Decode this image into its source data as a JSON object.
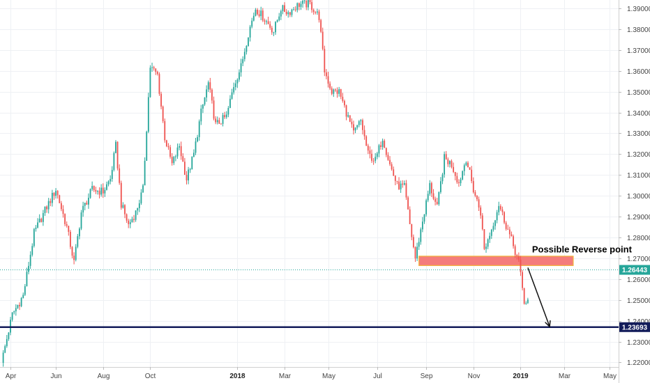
{
  "chart_data": {
    "type": "candlestick",
    "y_ticks": [
      "1.39000",
      "1.38000",
      "1.37000",
      "1.36000",
      "1.35000",
      "1.34000",
      "1.33000",
      "1.32000",
      "1.31000",
      "1.30000",
      "1.29000",
      "1.28000",
      "1.27000",
      "1.26000",
      "1.25000",
      "1.24000",
      "1.23000",
      "1.22000"
    ],
    "x_ticks": [
      {
        "label": "Apr",
        "bold": false
      },
      {
        "label": "Jun",
        "bold": false
      },
      {
        "label": "Aug",
        "bold": false
      },
      {
        "label": "Oct",
        "bold": false
      },
      {
        "label": "2018",
        "bold": true
      },
      {
        "label": "Mar",
        "bold": false
      },
      {
        "label": "May",
        "bold": false
      },
      {
        "label": "Jul",
        "bold": false
      },
      {
        "label": "Sep",
        "bold": false
      },
      {
        "label": "Nov",
        "bold": false
      },
      {
        "label": "2019",
        "bold": true
      },
      {
        "label": "Mar",
        "bold": false
      },
      {
        "label": "May",
        "bold": false
      }
    ],
    "x_tick_index": [
      5,
      30,
      56,
      82,
      130,
      156,
      180,
      207,
      234,
      260,
      286,
      310,
      335
    ],
    "ylim": [
      1.2178,
      1.394
    ],
    "bars_total": 340,
    "price_path": [
      [
        0,
        1.2198
      ],
      [
        6,
        1.243
      ],
      [
        12,
        1.252
      ],
      [
        18,
        1.282
      ],
      [
        24,
        1.293
      ],
      [
        30,
        1.303
      ],
      [
        36,
        1.285
      ],
      [
        40,
        1.268
      ],
      [
        44,
        1.292
      ],
      [
        50,
        1.303
      ],
      [
        56,
        1.302
      ],
      [
        60,
        1.308
      ],
      [
        63,
        1.324
      ],
      [
        66,
        1.296
      ],
      [
        70,
        1.286
      ],
      [
        74,
        1.292
      ],
      [
        78,
        1.303
      ],
      [
        82,
        1.362
      ],
      [
        86,
        1.358
      ],
      [
        90,
        1.328
      ],
      [
        94,
        1.315
      ],
      [
        98,
        1.324
      ],
      [
        102,
        1.308
      ],
      [
        106,
        1.32
      ],
      [
        110,
        1.34
      ],
      [
        114,
        1.354
      ],
      [
        118,
        1.334
      ],
      [
        124,
        1.338
      ],
      [
        128,
        1.353
      ],
      [
        132,
        1.362
      ],
      [
        136,
        1.378
      ],
      [
        140,
        1.39
      ],
      [
        144,
        1.386
      ],
      [
        150,
        1.379
      ],
      [
        154,
        1.39
      ],
      [
        158,
        1.388
      ],
      [
        164,
        1.392
      ],
      [
        170,
        1.392
      ],
      [
        175,
        1.386
      ],
      [
        178,
        1.36
      ],
      [
        182,
        1.35
      ],
      [
        186,
        1.35
      ],
      [
        190,
        1.34
      ],
      [
        194,
        1.33
      ],
      [
        198,
        1.336
      ],
      [
        202,
        1.32
      ],
      [
        206,
        1.317
      ],
      [
        210,
        1.328
      ],
      [
        214,
        1.315
      ],
      [
        218,
        1.305
      ],
      [
        222,
        1.304
      ],
      [
        225,
        1.286
      ],
      [
        228,
        1.27
      ],
      [
        232,
        1.288
      ],
      [
        236,
        1.305
      ],
      [
        240,
        1.294
      ],
      [
        244,
        1.318
      ],
      [
        248,
        1.315
      ],
      [
        252,
        1.306
      ],
      [
        256,
        1.318
      ],
      [
        260,
        1.303
      ],
      [
        264,
        1.292
      ],
      [
        266,
        1.274
      ],
      [
        270,
        1.284
      ],
      [
        274,
        1.296
      ],
      [
        278,
        1.286
      ],
      [
        282,
        1.276
      ],
      [
        285,
        1.268
      ],
      [
        288,
        1.249
      ],
      [
        290,
        1.2495
      ]
    ],
    "candles_visible": 290,
    "series_colors": {
      "up": "#26a69a",
      "down": "#ef5350"
    },
    "current_price": {
      "value": 1.26443,
      "label": "1.26443",
      "color": "#26a69a"
    },
    "support_line": {
      "value": 1.23693,
      "label": "1.23693",
      "color": "#131c5a"
    },
    "zone": {
      "low": 1.2665,
      "high": 1.271,
      "from_bar": 230,
      "to_bar": 315,
      "fill": "#f47c7c",
      "border": "#f1b43a"
    },
    "annotation": {
      "text": "Possible Reverse point",
      "bar": 290,
      "price": 1.2715
    },
    "arrow": {
      "from_bar": 290,
      "from_price": 1.2655,
      "to_bar": 302,
      "to_price": 1.2372
    },
    "grid": true
  }
}
